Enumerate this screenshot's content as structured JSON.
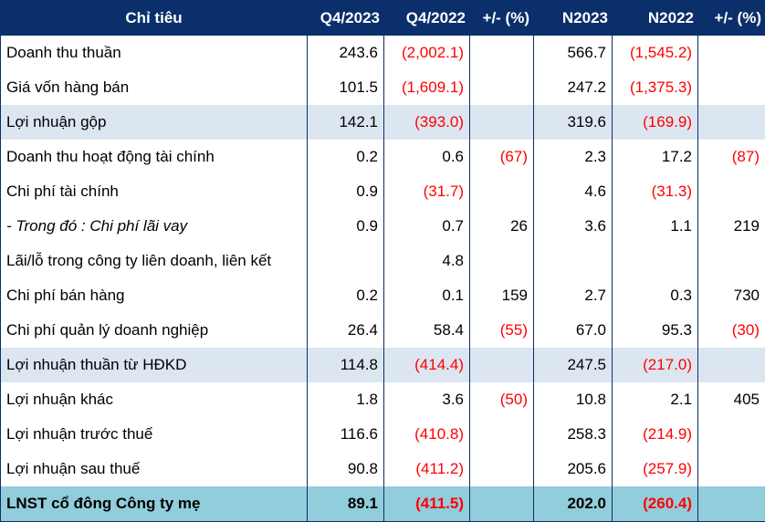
{
  "header": [
    "Chỉ tiêu",
    "Q4/2023",
    "Q4/2022",
    "+/- (%)",
    "N2023",
    "N2022",
    "+/- (%)"
  ],
  "rows": [
    {
      "label": "Doanh thu thuần",
      "cells": [
        "243.6",
        "(2,002.1)",
        "",
        "566.7",
        "(1,545.2)",
        ""
      ],
      "style": ""
    },
    {
      "label": "Giá vốn hàng bán",
      "cells": [
        "101.5",
        "(1,609.1)",
        "",
        "247.2",
        "(1,375.3)",
        ""
      ],
      "style": ""
    },
    {
      "label": "Lợi nhuận gộp",
      "cells": [
        "142.1",
        "(393.0)",
        "",
        "319.6",
        "(169.9)",
        ""
      ],
      "style": "shade"
    },
    {
      "label": "Doanh thu hoạt động tài chính",
      "cells": [
        "0.2",
        "0.6",
        "(67)",
        "2.3",
        "17.2",
        "(87)"
      ],
      "style": ""
    },
    {
      "label": "Chi phí tài chính",
      "cells": [
        "0.9",
        "(31.7)",
        "",
        "4.6",
        "(31.3)",
        ""
      ],
      "style": ""
    },
    {
      "label": "- Trong đó : Chi phí lãi vay",
      "cells": [
        "0.9",
        "0.7",
        "26",
        "3.6",
        "1.1",
        "219"
      ],
      "style": "italic"
    },
    {
      "label": "Lãi/lỗ trong công ty liên doanh, liên kết",
      "cells": [
        "",
        "4.8",
        "",
        "",
        "",
        ""
      ],
      "style": ""
    },
    {
      "label": "Chi phí bán hàng",
      "cells": [
        "0.2",
        "0.1",
        "159",
        "2.7",
        "0.3",
        "730"
      ],
      "style": ""
    },
    {
      "label": "Chi phí quản lý doanh nghiệp",
      "cells": [
        "26.4",
        "58.4",
        "(55)",
        "67.0",
        "95.3",
        "(30)"
      ],
      "style": ""
    },
    {
      "label": "Lợi nhuận thuần từ HĐKD",
      "cells": [
        "114.8",
        "(414.4)",
        "",
        "247.5",
        "(217.0)",
        ""
      ],
      "style": "shade"
    },
    {
      "label": "Lợi nhuận khác",
      "cells": [
        "1.8",
        "3.6",
        "(50)",
        "10.8",
        "2.1",
        "405"
      ],
      "style": ""
    },
    {
      "label": "Lợi nhuận trước thuế",
      "cells": [
        "116.6",
        "(410.8)",
        "",
        "258.3",
        "(214.9)",
        ""
      ],
      "style": ""
    },
    {
      "label": "Lợi nhuận sau thuế",
      "cells": [
        "90.8",
        "(411.2)",
        "",
        "205.6",
        "(257.9)",
        ""
      ],
      "style": ""
    },
    {
      "label": "LNST cổ đông Công ty mẹ",
      "cells": [
        "89.1",
        "(411.5)",
        "",
        "202.0",
        "(260.4)",
        ""
      ],
      "style": "total"
    }
  ],
  "colors": {
    "header_bg": "#0b2f6b",
    "shade_bg": "#dce6f1",
    "total_bg": "#92cddc",
    "negative": "#ff0000"
  }
}
